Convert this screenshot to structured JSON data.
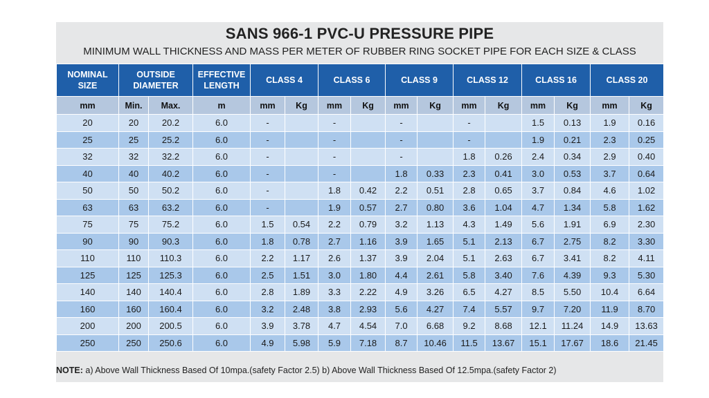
{
  "title": "SANS 966-1 PVC-U PRESSURE PIPE",
  "subtitle": "MINIMUM WALL THICKNESS AND MASS PER METER OF RUBBER RING SOCKET PIPE FOR EACH SIZE & CLASS",
  "header": {
    "nominal_size": [
      "NOMINAL",
      "SIZE"
    ],
    "outside_diameter": [
      "OUTSIDE",
      "DIAMETER"
    ],
    "effective_length": [
      "EFFECTIVE",
      "LENGTH"
    ],
    "classes": [
      "CLASS 4",
      "CLASS 6",
      "CLASS 9",
      "CLASS 12",
      "CLASS 16",
      "CLASS 20"
    ]
  },
  "units": [
    "mm",
    "Min.",
    "Max.",
    "m",
    "mm",
    "Kg",
    "mm",
    "Kg",
    "mm",
    "Kg",
    "mm",
    "Kg",
    "mm",
    "Kg",
    "mm",
    "Kg"
  ],
  "rows": [
    [
      "20",
      "20",
      "20.2",
      "6.0",
      "-",
      "",
      "-",
      "",
      "-",
      "",
      "-",
      "",
      "1.5",
      "0.13",
      "1.9",
      "0.16"
    ],
    [
      "25",
      "25",
      "25.2",
      "6.0",
      "-",
      "",
      "-",
      "",
      "-",
      "",
      "-",
      "",
      "1.9",
      "0.21",
      "2.3",
      "0.25"
    ],
    [
      "32",
      "32",
      "32.2",
      "6.0",
      "-",
      "",
      "-",
      "",
      "-",
      "",
      "1.8",
      "0.26",
      "2.4",
      "0.34",
      "2.9",
      "0.40"
    ],
    [
      "40",
      "40",
      "40.2",
      "6.0",
      "-",
      "",
      "-",
      "",
      "1.8",
      "0.33",
      "2.3",
      "0.41",
      "3.0",
      "0.53",
      "3.7",
      "0.64"
    ],
    [
      "50",
      "50",
      "50.2",
      "6.0",
      "-",
      "",
      "1.8",
      "0.42",
      "2.2",
      "0.51",
      "2.8",
      "0.65",
      "3.7",
      "0.84",
      "4.6",
      "1.02"
    ],
    [
      "63",
      "63",
      "63.2",
      "6.0",
      "-",
      "",
      "1.9",
      "0.57",
      "2.7",
      "0.80",
      "3.6",
      "1.04",
      "4.7",
      "1.34",
      "5.8",
      "1.62"
    ],
    [
      "75",
      "75",
      "75.2",
      "6.0",
      "1.5",
      "0.54",
      "2.2",
      "0.79",
      "3.2",
      "1.13",
      "4.3",
      "1.49",
      "5.6",
      "1.91",
      "6.9",
      "2.30"
    ],
    [
      "90",
      "90",
      "90.3",
      "6.0",
      "1.8",
      "0.78",
      "2.7",
      "1.16",
      "3.9",
      "1.65",
      "5.1",
      "2.13",
      "6.7",
      "2.75",
      "8.2",
      "3.30"
    ],
    [
      "110",
      "110",
      "110.3",
      "6.0",
      "2.2",
      "1.17",
      "2.6",
      "1.37",
      "3.9",
      "2.04",
      "5.1",
      "2.63",
      "6.7",
      "3.41",
      "8.2",
      "4.11"
    ],
    [
      "125",
      "125",
      "125.3",
      "6.0",
      "2.5",
      "1.51",
      "3.0",
      "1.80",
      "4.4",
      "2.61",
      "5.8",
      "3.40",
      "7.6",
      "4.39",
      "9.3",
      "5.30"
    ],
    [
      "140",
      "140",
      "140.4",
      "6.0",
      "2.8",
      "1.89",
      "3.3",
      "2.22",
      "4.9",
      "3.26",
      "6.5",
      "4.27",
      "8.5",
      "5.50",
      "10.4",
      "6.64"
    ],
    [
      "160",
      "160",
      "160.4",
      "6.0",
      "3.2",
      "2.48",
      "3.8",
      "2.93",
      "5.6",
      "4.27",
      "7.4",
      "5.57",
      "9.7",
      "7.20",
      "11.9",
      "8.70"
    ],
    [
      "200",
      "200",
      "200.5",
      "6.0",
      "3.9",
      "3.78",
      "4.7",
      "4.54",
      "7.0",
      "6.68",
      "9.2",
      "8.68",
      "12.1",
      "11.24",
      "14.9",
      "13.63"
    ],
    [
      "250",
      "250",
      "250.6",
      "6.0",
      "4.9",
      "5.98",
      "5.9",
      "7.18",
      "8.7",
      "10.46",
      "11.5",
      "13.67",
      "15.1",
      "17.67",
      "18.6",
      "21.45"
    ]
  ],
  "note": {
    "label": "NOTE:",
    "text": " a) Above Wall Thickness Based Of 10mpa.(safety Factor 2.5)   b) Above Wall Thickness Based Of 12.5mpa.(safety Factor 2)"
  },
  "colors": {
    "header_blue": "#1f5fa9",
    "units_row": "#b5c7de",
    "row_light": "#cfe0f3",
    "row_dark": "#a9c8ea",
    "panel_bg": "#e6e7e8"
  }
}
